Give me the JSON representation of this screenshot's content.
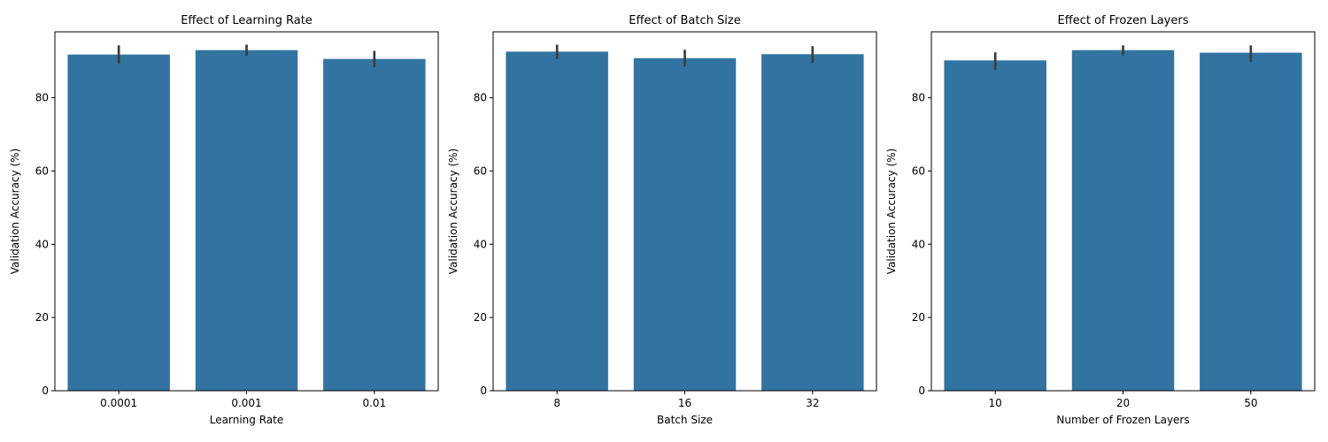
{
  "chart_data": [
    {
      "type": "bar",
      "title": "Effect of Learning Rate",
      "xlabel": "Learning Rate",
      "ylabel": "Validation Accuracy (%)",
      "categories": [
        "0.0001",
        "0.001",
        "0.01"
      ],
      "values": [
        91.8,
        93.0,
        90.6
      ],
      "error_low": [
        89.3,
        91.5,
        88.3
      ],
      "error_high": [
        94.3,
        94.5,
        92.8
      ],
      "ylim": [
        0,
        98
      ],
      "yticks": [
        0,
        20,
        40,
        60,
        80
      ],
      "bar_color": "#3274a1",
      "error_color": "#3d3d3d"
    },
    {
      "type": "bar",
      "title": "Effect of Batch Size",
      "xlabel": "Batch Size",
      "ylabel": "Validation Accuracy (%)",
      "categories": [
        "8",
        "16",
        "32"
      ],
      "values": [
        92.6,
        90.8,
        91.9
      ],
      "error_low": [
        90.6,
        88.5,
        89.4
      ],
      "error_high": [
        94.5,
        93.1,
        94.1
      ],
      "ylim": [
        0,
        98
      ],
      "yticks": [
        0,
        20,
        40,
        60,
        80
      ],
      "bar_color": "#3274a1",
      "error_color": "#3d3d3d"
    },
    {
      "type": "bar",
      "title": "Effect of Frozen Layers",
      "xlabel": "Number of Frozen Layers",
      "ylabel": "Validation Accuracy (%)",
      "categories": [
        "10",
        "20",
        "50"
      ],
      "values": [
        90.2,
        93.0,
        92.3
      ],
      "error_low": [
        87.6,
        91.6,
        89.8
      ],
      "error_high": [
        92.4,
        94.3,
        94.3
      ],
      "ylim": [
        0,
        98
      ],
      "yticks": [
        0,
        20,
        40,
        60,
        80
      ],
      "bar_color": "#3274a1",
      "error_color": "#3d3d3d"
    }
  ]
}
